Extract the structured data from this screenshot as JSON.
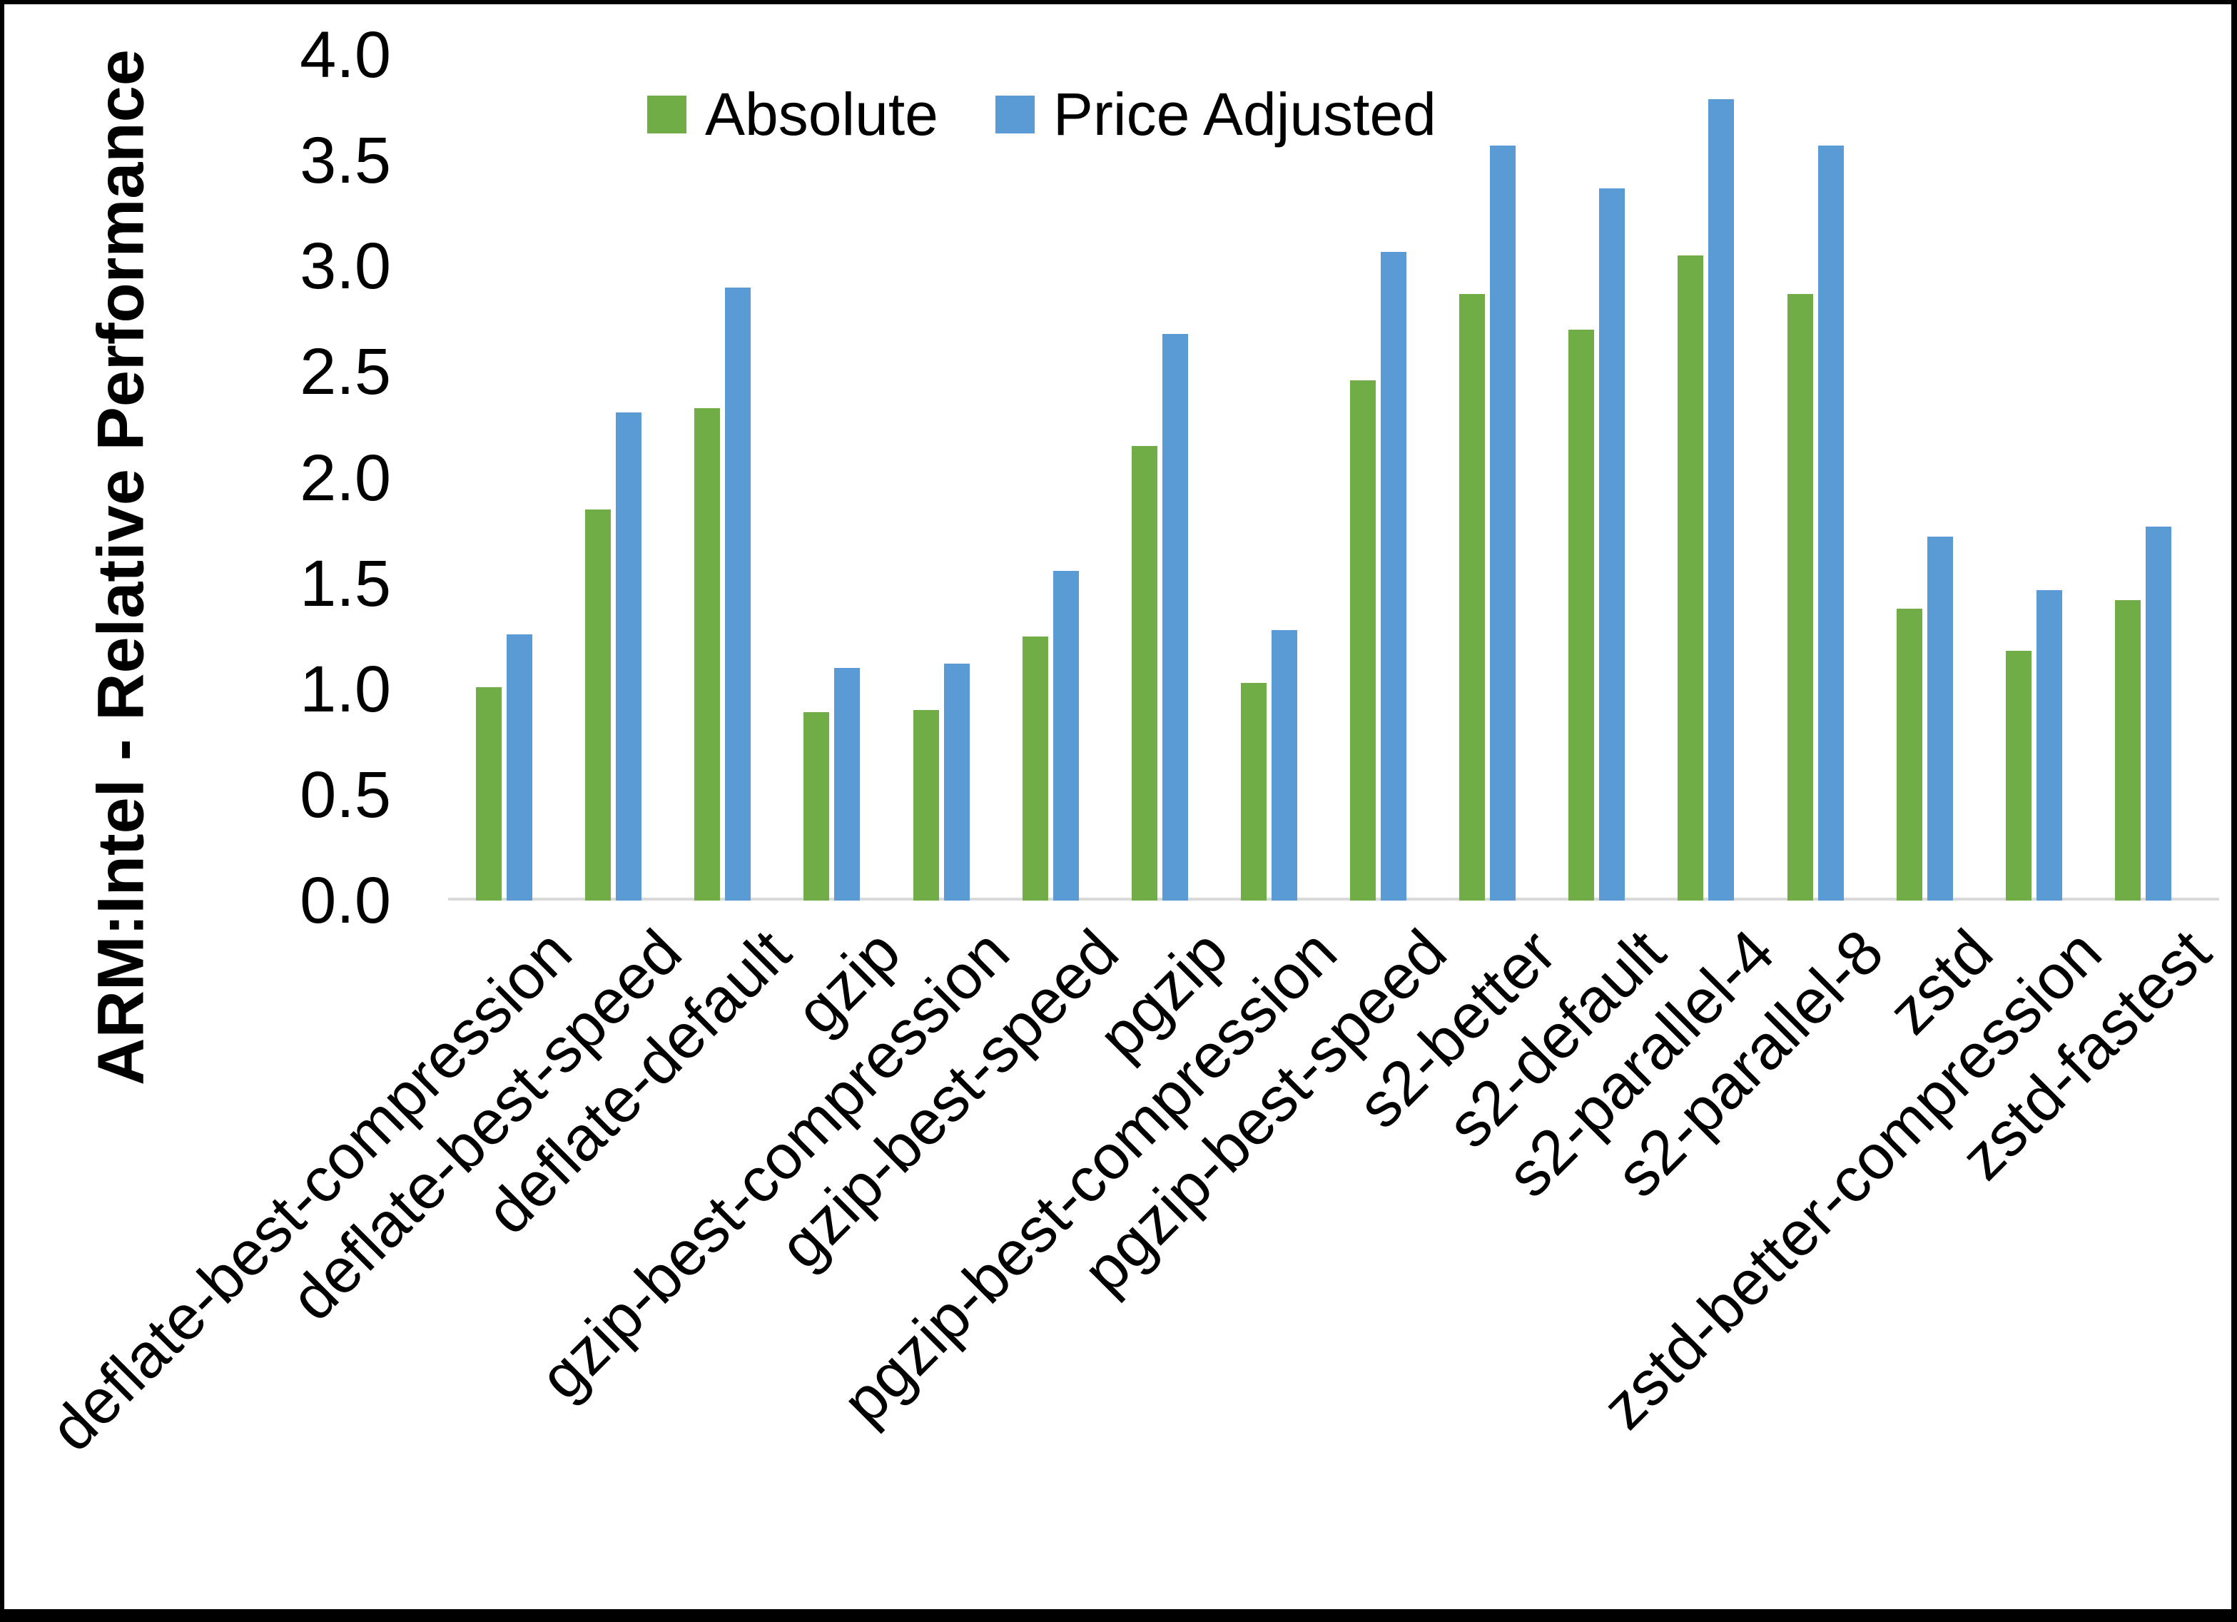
{
  "chart_data": {
    "type": "bar",
    "title": "",
    "ylabel": "ARM:Intel - Relative Performance",
    "xlabel": "",
    "ylim": [
      0.0,
      4.0
    ],
    "ytick_step": 0.5,
    "ytick_labels": [
      "0.0",
      "0.5",
      "1.0",
      "1.5",
      "2.0",
      "2.5",
      "3.0",
      "3.5",
      "4.0"
    ],
    "grid": false,
    "legend_position": "top",
    "categories": [
      "deflate-best-compression",
      "deflate-best-speed",
      "deflate-default",
      "gzip",
      "gzip-best-compression",
      "gzip-best-speed",
      "pgzip",
      "pgzip-best-compression",
      "pgzip-best-speed",
      "s2-better",
      "s2-default",
      "s2-parallel-4",
      "s2-parallel-8",
      "zstd",
      "zstd-better-compression",
      "zstd-fastest"
    ],
    "series": [
      {
        "name": "Absolute",
        "color": "#70AD47",
        "values": [
          1.01,
          1.85,
          2.33,
          0.89,
          0.9,
          1.25,
          2.15,
          1.03,
          2.46,
          2.87,
          2.7,
          3.05,
          2.87,
          1.38,
          1.18,
          1.42
        ]
      },
      {
        "name": "Price Adjusted",
        "color": "#5B9BD5",
        "values": [
          1.26,
          2.31,
          2.9,
          1.1,
          1.12,
          1.56,
          2.68,
          1.28,
          3.07,
          3.57,
          3.37,
          3.79,
          3.57,
          1.72,
          1.47,
          1.77
        ]
      }
    ],
    "axis_line_color": "#D9D9D9",
    "text_color": "#000000",
    "frame_color": "#000000"
  }
}
